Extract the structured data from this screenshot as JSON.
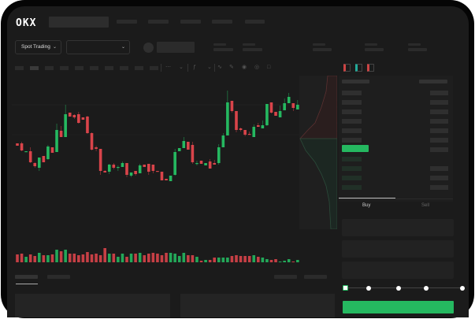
{
  "header": {
    "logo": "OKX"
  },
  "toolbar": {
    "market_select": "Spot Trading"
  },
  "trade": {
    "tabs": [
      {
        "label": "Buy",
        "active": true
      },
      {
        "label": "Sell",
        "active": false
      }
    ],
    "slider_level": 0
  },
  "colors": {
    "up": "#25b860",
    "down": "#d9444a",
    "background": "#1b1b1b",
    "bezel": "#050505"
  },
  "chart_data": {
    "type": "candlestick",
    "candles": [
      [
        118,
        118,
        115,
        115
      ],
      [
        118,
        120,
        108,
        109
      ],
      [
        107,
        108,
        107,
        108
      ],
      [
        108,
        113,
        93,
        94
      ],
      [
        93,
        94,
        87,
        89
      ],
      [
        87,
        100,
        83,
        100
      ],
      [
        102,
        102,
        94,
        94
      ],
      [
        98,
        116,
        97,
        114
      ],
      [
        113,
        113,
        106,
        106
      ],
      [
        107,
        143,
        107,
        135
      ],
      [
        134,
        140,
        126,
        126
      ],
      [
        126,
        167,
        126,
        155
      ],
      [
        157,
        157,
        152,
        152
      ],
      [
        154,
        155,
        149,
        151
      ],
      [
        155,
        158,
        143,
        144
      ],
      [
        151,
        151,
        148,
        148
      ],
      [
        152,
        153,
        130,
        131
      ],
      [
        131,
        132,
        109,
        110
      ],
      [
        113,
        115,
        108,
        111
      ],
      [
        111,
        111,
        78,
        83
      ],
      [
        83,
        84,
        81,
        81
      ],
      [
        82,
        92,
        79,
        91
      ],
      [
        91,
        93,
        85,
        87
      ],
      [
        87,
        90,
        83,
        88
      ],
      [
        88,
        95,
        88,
        93
      ],
      [
        93,
        93,
        75,
        78
      ],
      [
        77,
        81,
        75,
        81
      ],
      [
        83,
        83,
        77,
        79
      ],
      [
        80,
        92,
        80,
        90
      ],
      [
        91,
        91,
        88,
        88
      ],
      [
        92,
        92,
        78,
        82
      ],
      [
        91,
        91,
        80,
        83
      ],
      [
        83,
        83,
        82,
        82
      ],
      [
        82,
        82,
        71,
        71
      ],
      [
        73,
        73,
        71,
        71
      ],
      [
        70,
        77,
        70,
        77
      ],
      [
        78,
        111,
        77,
        107
      ],
      [
        108,
        112,
        108,
        112
      ],
      [
        112,
        126,
        112,
        121
      ],
      [
        120,
        120,
        110,
        110
      ],
      [
        116,
        120,
        92,
        94
      ],
      [
        93,
        96,
        90,
        93
      ],
      [
        96,
        96,
        92,
        92
      ],
      [
        90,
        93,
        90,
        93
      ],
      [
        95,
        98,
        86,
        86
      ],
      [
        93,
        97,
        91,
        91
      ],
      [
        93,
        117,
        91,
        113
      ],
      [
        113,
        131,
        113,
        128
      ],
      [
        128,
        185,
        128,
        170
      ],
      [
        172,
        172,
        157,
        159
      ],
      [
        159,
        159,
        132,
        135
      ],
      [
        137,
        138,
        133,
        135
      ],
      [
        135,
        135,
        127,
        129
      ],
      [
        130,
        133,
        129,
        129
      ],
      [
        126,
        142,
        126,
        139
      ],
      [
        141,
        144,
        139,
        139
      ],
      [
        137,
        147,
        137,
        141
      ],
      [
        141,
        168,
        140,
        168
      ],
      [
        170,
        170,
        156,
        157
      ],
      [
        158,
        158,
        153,
        153
      ],
      [
        151,
        166,
        151,
        159
      ],
      [
        160,
        175,
        160,
        169
      ],
      [
        169,
        182,
        169,
        177
      ],
      [
        169,
        169,
        159,
        163
      ],
      [
        161,
        173,
        161,
        167
      ]
    ],
    "volume": [
      10,
      11,
      7,
      10,
      8,
      12,
      9,
      9,
      10,
      16,
      14,
      16,
      11,
      11,
      9,
      10,
      13,
      10,
      11,
      9,
      18,
      11,
      11,
      7,
      11,
      7,
      11,
      11,
      12,
      9,
      11,
      12,
      11,
      9,
      12,
      12,
      11,
      8,
      12,
      9,
      9,
      7,
      2,
      3,
      3,
      6,
      6,
      6,
      6,
      8,
      9,
      8,
      8,
      8,
      9,
      7,
      6,
      4,
      3,
      4,
      1,
      2,
      4,
      1,
      3
    ]
  }
}
